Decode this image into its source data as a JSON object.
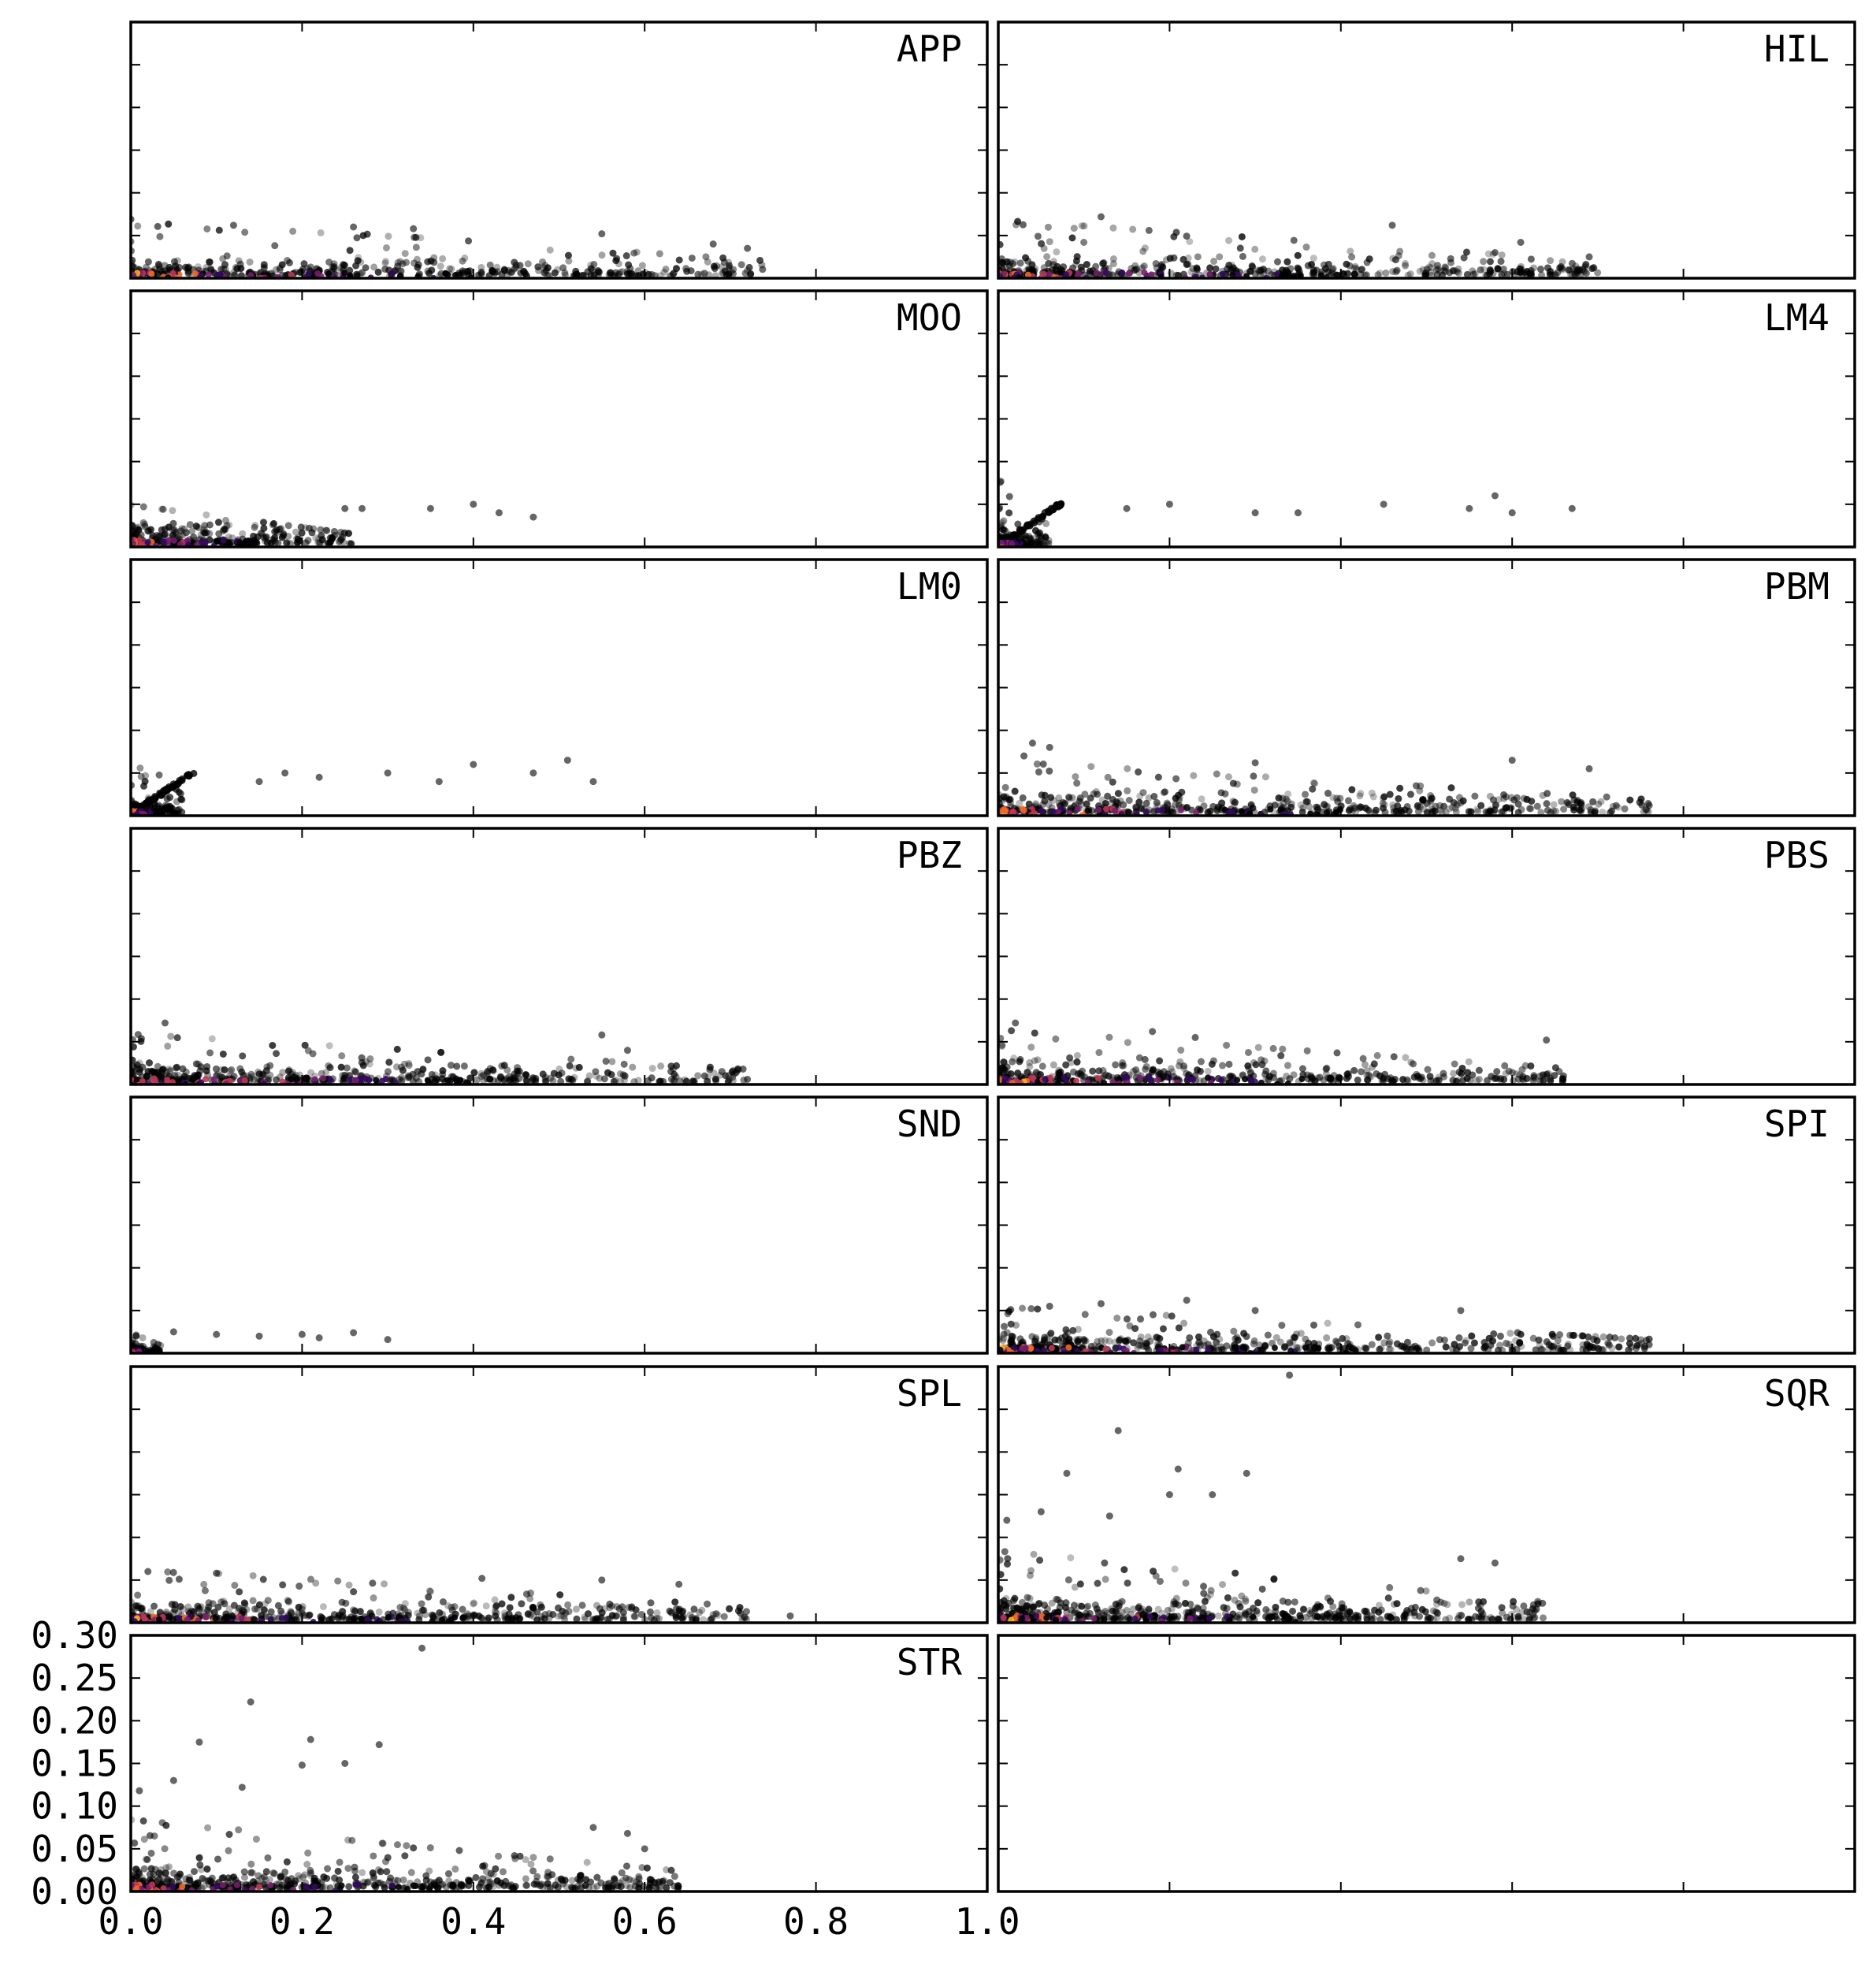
{
  "chart_data": {
    "type": "scatter",
    "layout": {
      "rows": 7,
      "cols": 2
    },
    "xlim": [
      0.0,
      1.0
    ],
    "ylim": [
      0.0,
      0.3
    ],
    "x_ticks": [
      0.0,
      0.2,
      0.4,
      0.6,
      0.8,
      1.0
    ],
    "y_ticks": [
      0.0,
      0.05,
      0.1,
      0.15,
      0.2,
      0.25,
      0.3
    ],
    "x_tick_labels": [
      "0.0",
      "0.2",
      "0.4",
      "0.6",
      "0.8",
      "1.0"
    ],
    "y_tick_labels": [
      "0.00",
      "0.05",
      "0.10",
      "0.15",
      "0.20",
      "0.25",
      "0.30"
    ],
    "shared_axes": true,
    "grid": false,
    "point_color": "#000000",
    "density_colormap": [
      "#000004",
      "#320a5e",
      "#781c6d",
      "#bc3754",
      "#ed6925",
      "#fbb61a"
    ],
    "panels": [
      {
        "label": "APP",
        "n": 420,
        "xmax": 0.74,
        "ytyp": 0.014,
        "ymax": 0.066,
        "outliers": [
          [
            0.26,
            0.06
          ],
          [
            0.33,
            0.058
          ],
          [
            0.55,
            0.052
          ],
          [
            0.68,
            0.04
          ],
          [
            0.72,
            0.035
          ],
          [
            0.12,
            0.062
          ]
        ]
      },
      {
        "label": "HIL",
        "n": 420,
        "xmax": 0.7,
        "ytyp": 0.016,
        "ymax": 0.064,
        "outliers": [
          [
            0.12,
            0.072
          ],
          [
            0.46,
            0.062
          ],
          [
            0.61,
            0.042
          ],
          [
            0.69,
            0.025
          ],
          [
            0.58,
            0.03
          ]
        ]
      },
      {
        "label": "MOO",
        "n": 260,
        "xmax": 0.26,
        "ytyp": 0.018,
        "ymax": 0.045,
        "outliers": [
          [
            0.25,
            0.045
          ],
          [
            0.27,
            0.045
          ],
          [
            0.35,
            0.045
          ],
          [
            0.4,
            0.05
          ],
          [
            0.43,
            0.04
          ],
          [
            0.47,
            0.035
          ]
        ]
      },
      {
        "label": "LM4",
        "n": 140,
        "xmax": 0.06,
        "ytyp": 0.012,
        "ymax": 0.08,
        "diag": 0.075,
        "outliers": [
          [
            0.15,
            0.045
          ],
          [
            0.2,
            0.05
          ],
          [
            0.3,
            0.04
          ],
          [
            0.35,
            0.04
          ],
          [
            0.45,
            0.05
          ],
          [
            0.55,
            0.045
          ],
          [
            0.58,
            0.06
          ],
          [
            0.6,
            0.04
          ],
          [
            0.67,
            0.045
          ]
        ]
      },
      {
        "label": "LM0",
        "n": 140,
        "xmax": 0.06,
        "ytyp": 0.012,
        "ymax": 0.08,
        "diag": 0.075,
        "outliers": [
          [
            0.15,
            0.04
          ],
          [
            0.18,
            0.05
          ],
          [
            0.22,
            0.045
          ],
          [
            0.3,
            0.05
          ],
          [
            0.36,
            0.04
          ],
          [
            0.4,
            0.06
          ],
          [
            0.47,
            0.05
          ],
          [
            0.51,
            0.065
          ],
          [
            0.54,
            0.04
          ]
        ]
      },
      {
        "label": "PBM",
        "n": 480,
        "xmax": 0.76,
        "ytyp": 0.018,
        "ymax": 0.06,
        "outliers": [
          [
            0.04,
            0.085
          ],
          [
            0.06,
            0.08
          ],
          [
            0.3,
            0.062
          ],
          [
            0.6,
            0.065
          ],
          [
            0.69,
            0.055
          ],
          [
            0.76,
            0.012
          ],
          [
            0.03,
            0.07
          ]
        ]
      },
      {
        "label": "PBZ",
        "n": 440,
        "xmax": 0.72,
        "ytyp": 0.016,
        "ymax": 0.055,
        "outliers": [
          [
            0.04,
            0.072
          ],
          [
            0.55,
            0.058
          ],
          [
            0.58,
            0.04
          ],
          [
            0.67,
            0.01
          ],
          [
            0.72,
            0.006
          ]
        ]
      },
      {
        "label": "PBS",
        "n": 400,
        "xmax": 0.66,
        "ytyp": 0.018,
        "ymax": 0.06,
        "outliers": [
          [
            0.02,
            0.072
          ],
          [
            0.18,
            0.062
          ],
          [
            0.23,
            0.055
          ],
          [
            0.64,
            0.052
          ],
          [
            0.66,
            0.01
          ]
        ]
      },
      {
        "label": "SND",
        "n": 80,
        "xmax": 0.035,
        "ytyp": 0.006,
        "ymax": 0.02,
        "outliers": [
          [
            0.05,
            0.025
          ],
          [
            0.1,
            0.022
          ],
          [
            0.15,
            0.02
          ],
          [
            0.2,
            0.022
          ],
          [
            0.26,
            0.024
          ],
          [
            0.3,
            0.016
          ],
          [
            0.22,
            0.018
          ]
        ]
      },
      {
        "label": "SPI",
        "n": 440,
        "xmax": 0.76,
        "ytyp": 0.016,
        "ymax": 0.05,
        "outliers": [
          [
            0.06,
            0.055
          ],
          [
            0.12,
            0.058
          ],
          [
            0.22,
            0.062
          ],
          [
            0.3,
            0.05
          ],
          [
            0.54,
            0.05
          ],
          [
            0.72,
            0.018
          ],
          [
            0.76,
            0.01
          ]
        ]
      },
      {
        "label": "SPL",
        "n": 460,
        "xmax": 0.72,
        "ytyp": 0.016,
        "ymax": 0.06,
        "outliers": [
          [
            0.02,
            0.06
          ],
          [
            0.1,
            0.058
          ],
          [
            0.41,
            0.052
          ],
          [
            0.55,
            0.05
          ],
          [
            0.64,
            0.045
          ],
          [
            0.77,
            0.008
          ]
        ]
      },
      {
        "label": "SQR",
        "n": 520,
        "xmax": 0.64,
        "ytyp": 0.018,
        "ymax": 0.08,
        "outliers": [
          [
            0.34,
            0.29
          ],
          [
            0.14,
            0.225
          ],
          [
            0.08,
            0.175
          ],
          [
            0.21,
            0.18
          ],
          [
            0.29,
            0.175
          ],
          [
            0.2,
            0.15
          ],
          [
            0.25,
            0.15
          ],
          [
            0.05,
            0.13
          ],
          [
            0.13,
            0.125
          ],
          [
            0.01,
            0.12
          ],
          [
            0.54,
            0.075
          ],
          [
            0.58,
            0.07
          ]
        ]
      },
      {
        "label": "STR",
        "n": 520,
        "xmax": 0.64,
        "ytyp": 0.018,
        "ymax": 0.08,
        "outliers": [
          [
            0.34,
            0.285
          ],
          [
            0.14,
            0.222
          ],
          [
            0.08,
            0.175
          ],
          [
            0.21,
            0.178
          ],
          [
            0.29,
            0.172
          ],
          [
            0.2,
            0.148
          ],
          [
            0.25,
            0.15
          ],
          [
            0.05,
            0.13
          ],
          [
            0.13,
            0.122
          ],
          [
            0.01,
            0.118
          ],
          [
            0.54,
            0.075
          ],
          [
            0.58,
            0.068
          ],
          [
            0.6,
            0.05
          ]
        ]
      },
      {
        "label": "",
        "n": 0,
        "xmax": 0,
        "ytyp": 0,
        "ymax": 0,
        "outliers": []
      }
    ]
  }
}
